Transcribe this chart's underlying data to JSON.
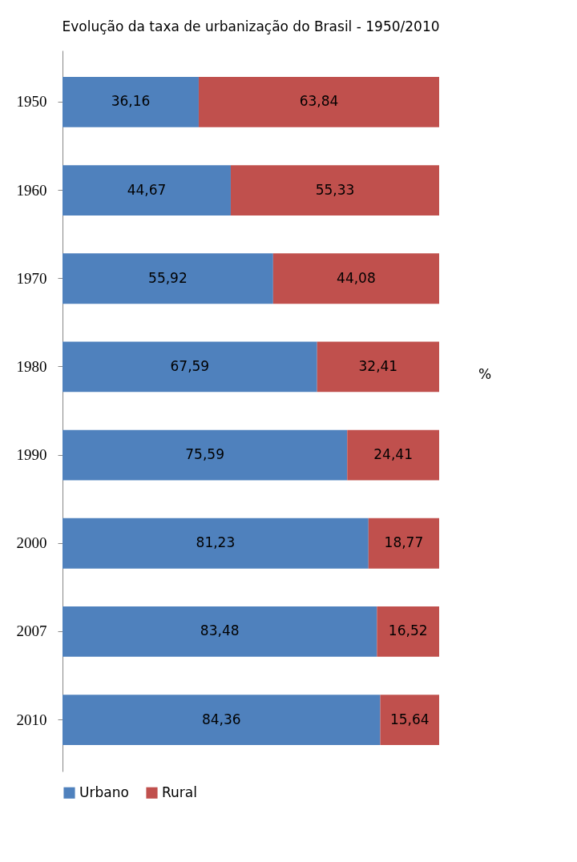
{
  "chart_data": {
    "type": "bar",
    "orientation": "horizontal",
    "stacked": true,
    "title": "Evolução da taxa de urbanização do Brasil - 1950/2010",
    "categories": [
      "1950",
      "1960",
      "1970",
      "1980",
      "1990",
      "2000",
      "2007",
      "2010"
    ],
    "series": [
      {
        "name": "Urbano",
        "color": "#4f81bd",
        "values": [
          36.16,
          44.67,
          55.92,
          67.59,
          75.59,
          81.23,
          83.48,
          84.36
        ],
        "value_labels": [
          "36,16",
          "44,67",
          "55,92",
          "67,59",
          "75,59",
          "81,23",
          "83,48",
          "84,36"
        ]
      },
      {
        "name": "Rural",
        "color": "#c0504d",
        "values": [
          63.84,
          55.33,
          44.08,
          32.41,
          24.41,
          18.77,
          16.52,
          15.64
        ],
        "value_labels": [
          "63,84",
          "55,33",
          "44,08",
          "32,41",
          "24,41",
          "18,77",
          "16,52",
          "15,64"
        ]
      }
    ],
    "annotations": [
      "%"
    ],
    "legend": "bottom",
    "grid": false
  }
}
